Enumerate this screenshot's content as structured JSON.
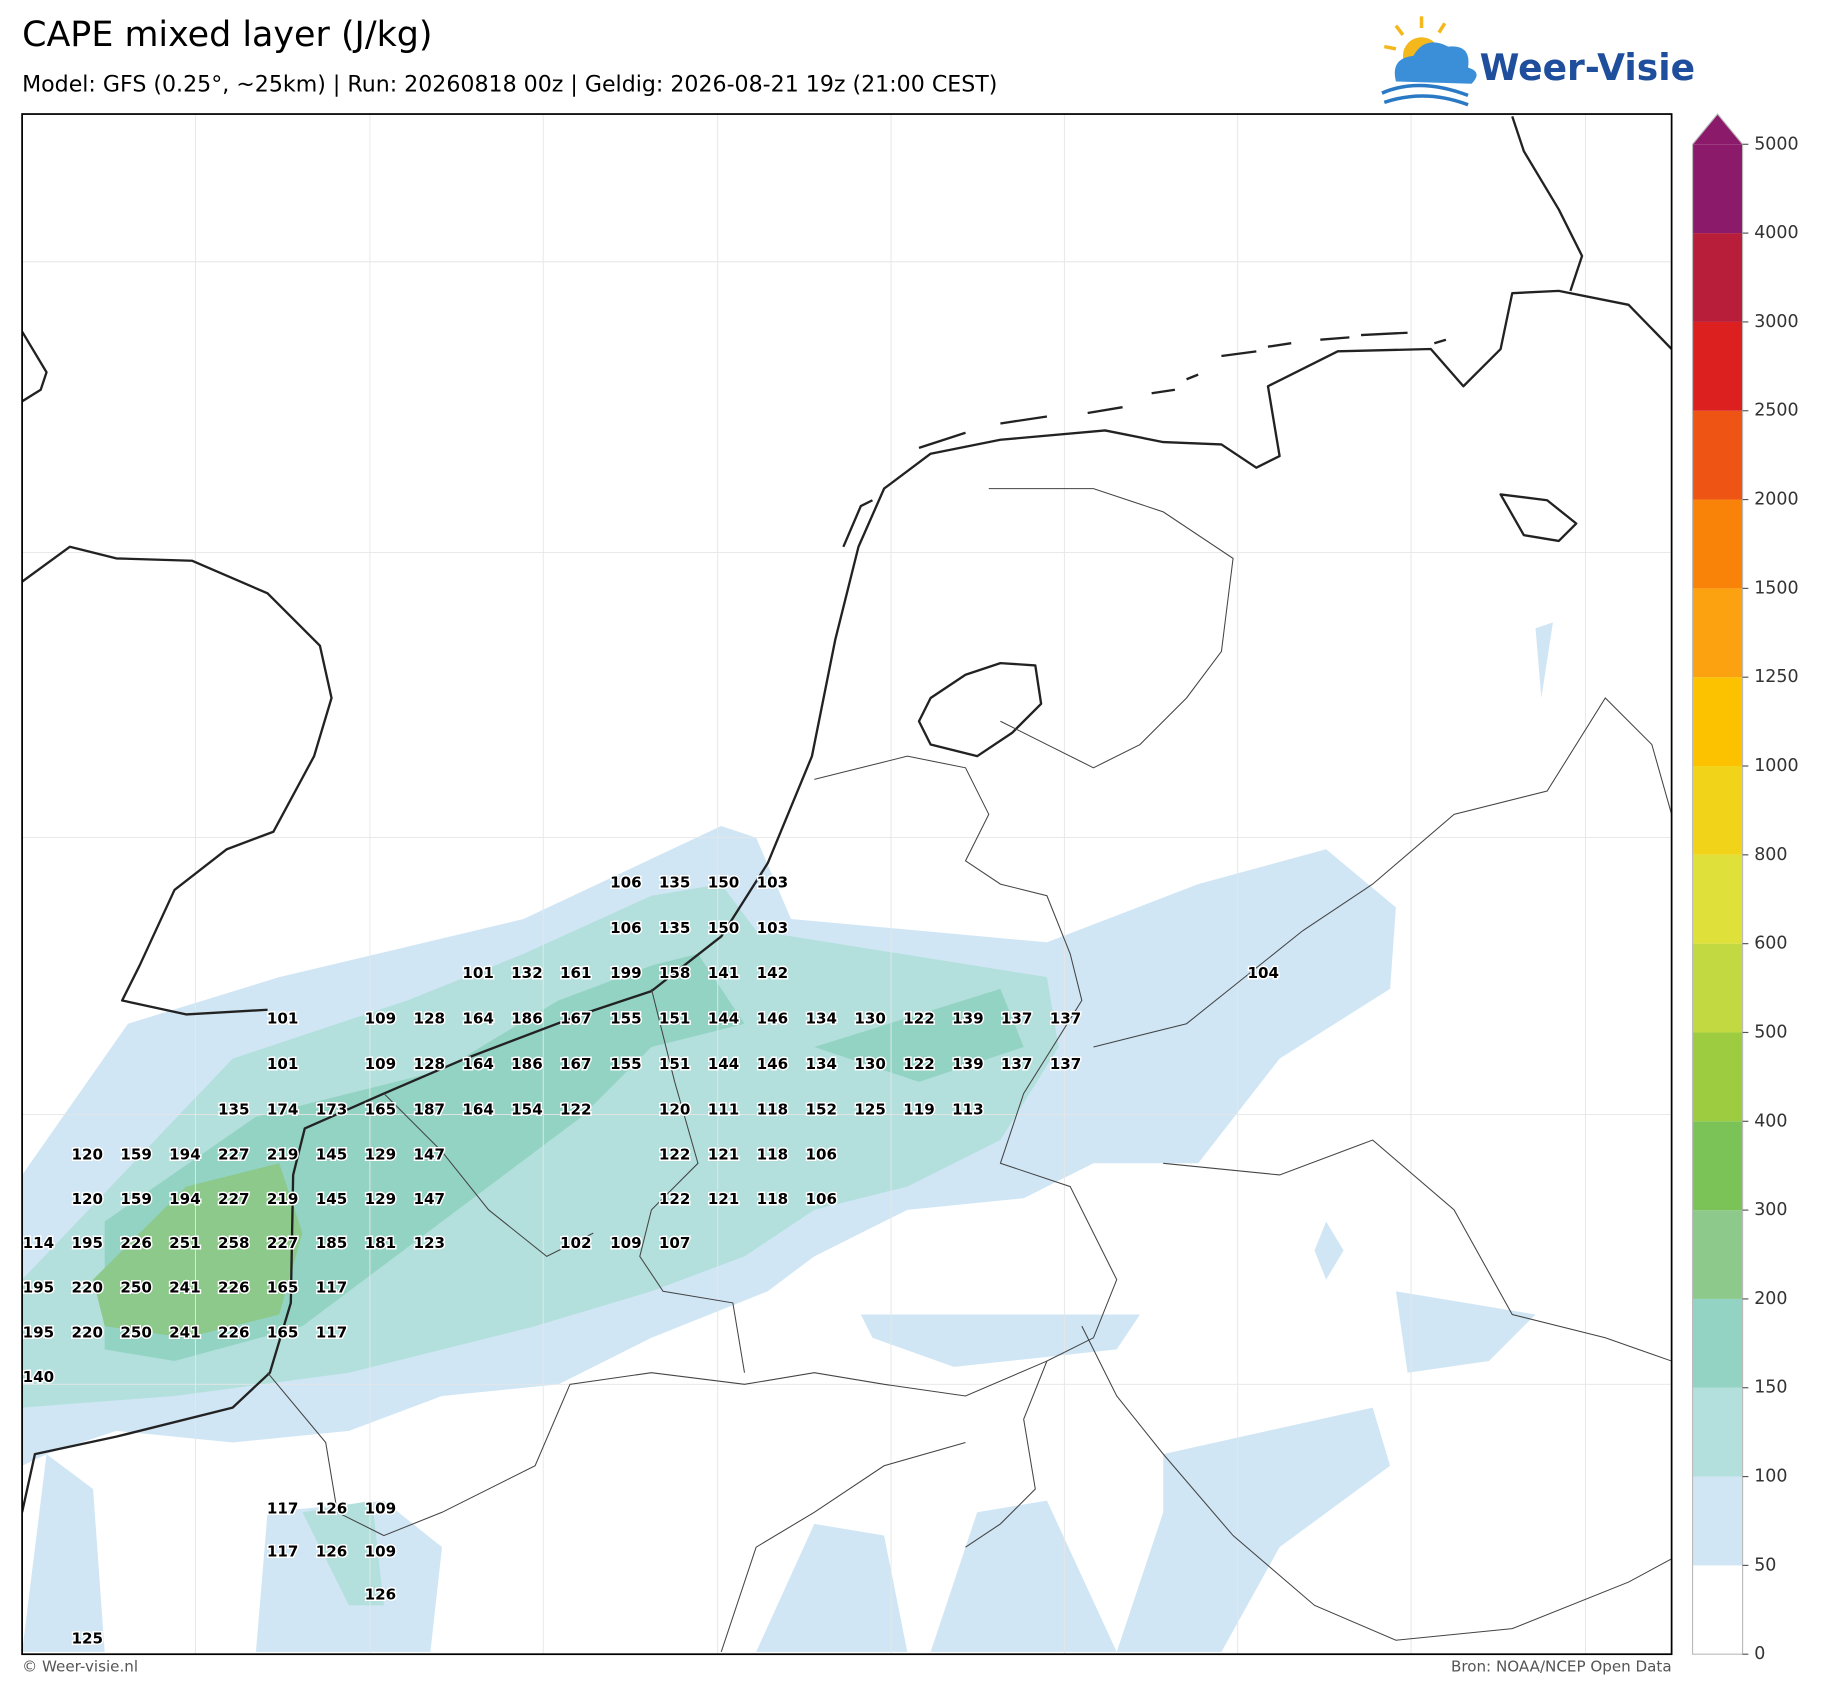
{
  "header": {
    "title": "CAPE mixed layer (J/kg)",
    "subtitle": "Model: GFS (0.25°, ~25km)  |  Run: 20260818 00z  |  Geldig: 2026-08-21 19z (21:00 CEST)"
  },
  "logo": {
    "text": "Weer-Visie"
  },
  "colorbar": {
    "levels": [
      0,
      50,
      100,
      150,
      200,
      300,
      400,
      500,
      600,
      800,
      1000,
      1250,
      1500,
      2000,
      2500,
      3000,
      4000,
      5000
    ],
    "colors": [
      "#ffffff",
      "#d0e6f5",
      "#b3e0dc",
      "#93d3c4",
      "#8cc98a",
      "#7cc357",
      "#9dcc40",
      "#c2d942",
      "#dfe03a",
      "#f1d41a",
      "#fcc200",
      "#fca110",
      "#f98209",
      "#ee5413",
      "#dc2020",
      "#b81d3a",
      "#8b1a6b"
    ]
  },
  "map_labels": [
    [
      106,
      135,
      150,
      103
    ],
    [
      106,
      135,
      150,
      103
    ],
    [
      101,
      132,
      161,
      199,
      158,
      141,
      142,
      104
    ],
    [
      101,
      109,
      128,
      164,
      186,
      167,
      155,
      151,
      144,
      146,
      134,
      130,
      122,
      139,
      137,
      137
    ],
    [
      101,
      109,
      128,
      164,
      186,
      167,
      155,
      151,
      144,
      146,
      134,
      130,
      122,
      139,
      137,
      137
    ],
    [
      135,
      174,
      173,
      165,
      187,
      164,
      154,
      122,
      120,
      111,
      118,
      152,
      125,
      119,
      113
    ],
    [
      120,
      159,
      194,
      227,
      219,
      145,
      129,
      147,
      122,
      121,
      118,
      106
    ],
    [
      120,
      159,
      194,
      227,
      219,
      145,
      129,
      147,
      122,
      121,
      118,
      106
    ],
    [
      114,
      195,
      226,
      251,
      258,
      227,
      185,
      181,
      123,
      102,
      109,
      107
    ],
    [
      195,
      220,
      250,
      241,
      226,
      165,
      117
    ],
    [
      195,
      220,
      250,
      241,
      226,
      165,
      117
    ],
    [
      140
    ],
    [
      117,
      126,
      109
    ],
    [
      117,
      126,
      109
    ],
    [
      126
    ],
    [
      125
    ]
  ],
  "footer": {
    "copyright": "© Weer-visie.nl",
    "source": "Bron: NOAA/NCEP Open Data"
  }
}
